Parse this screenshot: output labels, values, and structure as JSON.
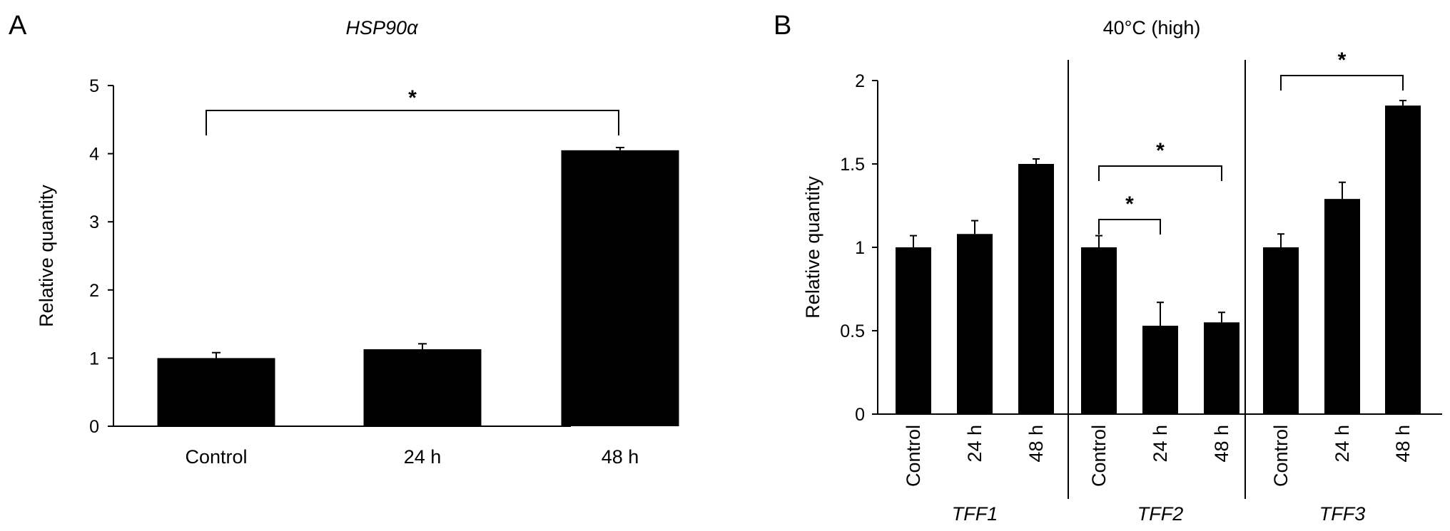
{
  "panels": {
    "a": {
      "letter": "A",
      "title": "HSP90α"
    },
    "b": {
      "letter": "B",
      "title": "40°C (high)"
    }
  },
  "chart_data": [
    {
      "type": "bar",
      "title": "HSP90α",
      "xlabel": "",
      "ylabel": "Relative quantity",
      "ylim": [
        0,
        5
      ],
      "yticks": [
        0,
        1,
        2,
        3,
        4,
        5
      ],
      "categories": [
        "Control",
        "24 h",
        "48 h"
      ],
      "values": [
        1.0,
        1.13,
        4.05
      ],
      "errors": [
        0.08,
        0.08,
        0.04
      ],
      "grid": false,
      "bar_color": "#000000",
      "significance": [
        {
          "from": "Control",
          "to": "48 h",
          "label": "*"
        }
      ]
    },
    {
      "type": "bar",
      "title": "40°C (high)",
      "xlabel": "",
      "ylabel": "Relative quantity",
      "ylim": [
        0,
        2
      ],
      "yticks": [
        0,
        0.5,
        1,
        1.5,
        2
      ],
      "groups": [
        {
          "name": "TFF1",
          "categories": [
            "Control",
            "24 h",
            "48 h"
          ],
          "values": [
            1.0,
            1.08,
            1.5
          ],
          "errors": [
            0.07,
            0.08,
            0.03
          ]
        },
        {
          "name": "TFF2",
          "categories": [
            "Control",
            "24 h",
            "48 h"
          ],
          "values": [
            1.0,
            0.53,
            0.55
          ],
          "errors": [
            0.07,
            0.14,
            0.06
          ]
        },
        {
          "name": "TFF3",
          "categories": [
            "Control",
            "24 h",
            "48 h"
          ],
          "values": [
            1.0,
            1.29,
            1.85
          ],
          "errors": [
            0.08,
            0.1,
            0.03
          ]
        }
      ],
      "grid": false,
      "bar_color": "#000000",
      "significance": [
        {
          "group": "TFF2",
          "from": "Control",
          "to": "48 h",
          "label": "*"
        },
        {
          "group": "TFF2",
          "from": "Control",
          "to": "24 h",
          "label": "*"
        },
        {
          "group": "TFF3",
          "from": "Control",
          "to": "48 h",
          "label": "*"
        }
      ]
    }
  ]
}
